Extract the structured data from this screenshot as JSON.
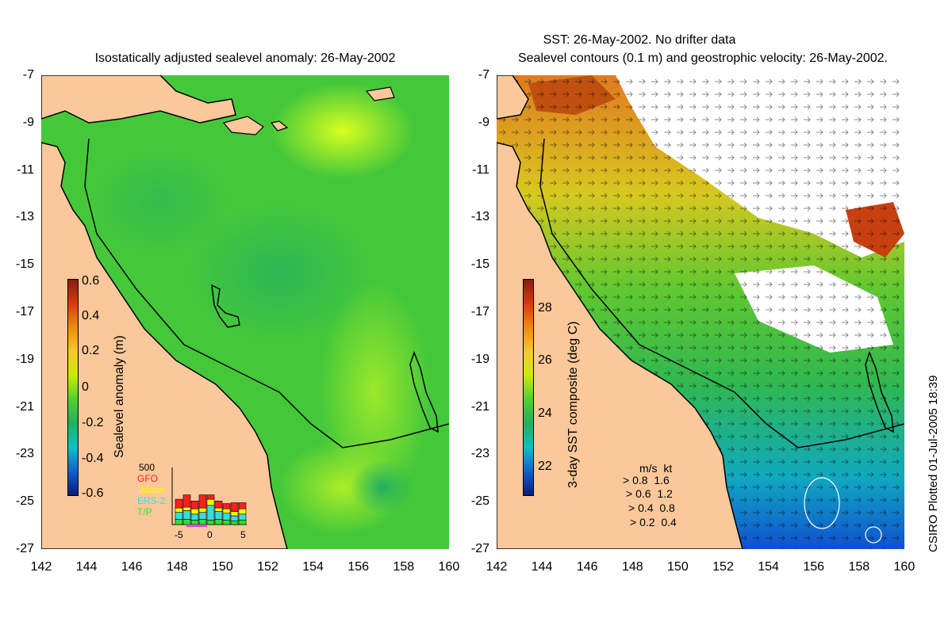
{
  "left_panel": {
    "title": "Isostatically adjusted sealevel anomaly: 26-May-2002",
    "colorbar": {
      "label": "Sealevel anomaly (m)",
      "ticks": [
        "0.6",
        "0.4",
        "0.2",
        "0",
        "-0.2",
        "-0.4",
        "-0.6"
      ]
    },
    "histogram": {
      "count_label": "500",
      "missions": [
        {
          "name": "GFO",
          "color": "#ff2020"
        },
        {
          "name": "Jason",
          "color": "#ffff00"
        },
        {
          "name": "ERS-2",
          "color": "#30e0e0"
        },
        {
          "name": "T/P",
          "color": "#30e030"
        }
      ],
      "x_ticks": [
        "-5",
        "0",
        "5"
      ],
      "bars": [
        {
          "gfo": 1,
          "jason": 0.5,
          "ers": 0.8,
          "tp": 0.6
        },
        {
          "gfo": 1.4,
          "jason": 0.4,
          "ers": 1.0,
          "tp": 0.6
        },
        {
          "gfo": 0.9,
          "jason": 0.6,
          "ers": 0.7,
          "tp": 0.5
        },
        {
          "gfo": 1.5,
          "jason": 0.5,
          "ers": 0.8,
          "tp": 0.6
        },
        {
          "gfo": 0.5,
          "jason": 0.7,
          "ers": 1.7,
          "tp": 0.5
        },
        {
          "gfo": 0.8,
          "jason": 0.4,
          "ers": 0.9,
          "tp": 0.6
        },
        {
          "gfo": 0.6,
          "jason": 0.5,
          "ers": 0.8,
          "tp": 0.5
        },
        {
          "gfo": 1.0,
          "jason": 0.5,
          "ers": 0.6,
          "tp": 0.4
        },
        {
          "gfo": 0.7,
          "jason": 0.6,
          "ers": 0.7,
          "tp": 0.5
        }
      ]
    }
  },
  "right_panel": {
    "title_line1": "SST: 26-May-2002. No drifter data",
    "title_line2": "Sealevel contours (0.1 m) and geostrophic velocity: 26-May-2002.",
    "colorbar": {
      "label": "3-day SST composite (deg C)",
      "ticks": [
        "28",
        "26",
        "24",
        "22"
      ]
    },
    "velocity_legend": {
      "header": "m/s  kt",
      "rows": [
        "0.8  1.6",
        "0.6  1.2",
        "0.4  0.8",
        "0.2  0.4"
      ]
    }
  },
  "axes": {
    "y_ticks": [
      "-7",
      "-9",
      "-11",
      "-13",
      "-15",
      "-17",
      "-19",
      "-21",
      "-23",
      "-25",
      "-27"
    ],
    "x_ticks": [
      "142",
      "144",
      "146",
      "148",
      "150",
      "152",
      "154",
      "156",
      "158",
      "160"
    ]
  },
  "credit": "CSIRO Plotted 01-Jul-2005 18:39",
  "colors": {
    "land": "#fac89a",
    "sea_green": "#3cc83c",
    "coast": "#000000"
  }
}
